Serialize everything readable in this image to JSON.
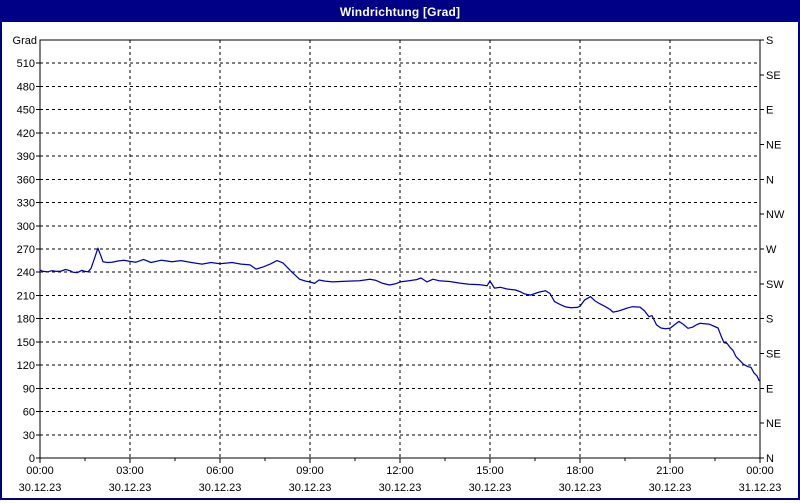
{
  "window": {
    "title": "Windrichtung [Grad]"
  },
  "colors": {
    "titlebar_bg": "#000087",
    "titlebar_text": "#ffffff",
    "window_border": "#000087",
    "chart_bg": "#ffffff",
    "axis": "#000000",
    "grid": "#000000",
    "line": "#0000bb"
  },
  "chart_data": {
    "type": "line",
    "title": "Windrichtung [Grad]",
    "ylabel": "Grad",
    "ylim": [
      0,
      540
    ],
    "grid": "dashed",
    "y_left_ticks": [
      510,
      480,
      450,
      420,
      390,
      360,
      330,
      300,
      270,
      240,
      210,
      180,
      150,
      120,
      90,
      60,
      30,
      0
    ],
    "y_right_ticks": [
      {
        "value": 540,
        "label": "S"
      },
      {
        "value": 495,
        "label": "SE"
      },
      {
        "value": 450,
        "label": "E"
      },
      {
        "value": 405,
        "label": "NE"
      },
      {
        "value": 360,
        "label": "N"
      },
      {
        "value": 315,
        "label": "NW"
      },
      {
        "value": 270,
        "label": "W"
      },
      {
        "value": 225,
        "label": "SW"
      },
      {
        "value": 180,
        "label": "S"
      },
      {
        "value": 135,
        "label": "SE"
      },
      {
        "value": 90,
        "label": "E"
      },
      {
        "value": 45,
        "label": "NE"
      },
      {
        "value": 0,
        "label": "N"
      }
    ],
    "xlim_hours": [
      0,
      24
    ],
    "x_ticks": [
      {
        "hour": 0,
        "time": "00:00",
        "date": "30.12.23"
      },
      {
        "hour": 3,
        "time": "03:00",
        "date": "30.12.23"
      },
      {
        "hour": 6,
        "time": "06:00",
        "date": "30.12.23"
      },
      {
        "hour": 9,
        "time": "09:00",
        "date": "30.12.23"
      },
      {
        "hour": 12,
        "time": "12:00",
        "date": "30.12.23"
      },
      {
        "hour": 15,
        "time": "15:00",
        "date": "30.12.23"
      },
      {
        "hour": 18,
        "time": "18:00",
        "date": "30.12.23"
      },
      {
        "hour": 21,
        "time": "21:00",
        "date": "30.12.23"
      },
      {
        "hour": 24,
        "time": "00:00",
        "date": "31.12.23"
      }
    ],
    "x_minor_ticks_hours": [
      1.5,
      4.5,
      7.5,
      10.5,
      13.5,
      16.5,
      19.5,
      22.5
    ],
    "series": [
      {
        "name": "Windrichtung",
        "color": "#0000bb",
        "points": [
          [
            0,
            243
          ],
          [
            0.1,
            241
          ],
          [
            0.25,
            240.5
          ],
          [
            0.4,
            242
          ],
          [
            0.55,
            241
          ],
          [
            0.7,
            241.5
          ],
          [
            0.85,
            243.5
          ],
          [
            1,
            242
          ],
          [
            1.1,
            240
          ],
          [
            1.25,
            239.5
          ],
          [
            1.4,
            242.5
          ],
          [
            1.5,
            241
          ],
          [
            1.6,
            240.5
          ],
          [
            1.7,
            245
          ],
          [
            1.8,
            256
          ],
          [
            1.93,
            271
          ],
          [
            2.02,
            262
          ],
          [
            2.1,
            253.5
          ],
          [
            2.25,
            252.5
          ],
          [
            2.4,
            253
          ],
          [
            2.6,
            254.5
          ],
          [
            2.8,
            255.5
          ],
          [
            3,
            254
          ],
          [
            3.2,
            253
          ],
          [
            3.45,
            256.5
          ],
          [
            3.7,
            252.5
          ],
          [
            4.05,
            255.5
          ],
          [
            4.4,
            253.5
          ],
          [
            4.7,
            255
          ],
          [
            5.05,
            252.5
          ],
          [
            5.4,
            250.5
          ],
          [
            5.7,
            252.5
          ],
          [
            6,
            251
          ],
          [
            6.4,
            252.5
          ],
          [
            6.7,
            250.5
          ],
          [
            7,
            249.5
          ],
          [
            7.2,
            244
          ],
          [
            7.45,
            247
          ],
          [
            7.7,
            251
          ],
          [
            7.9,
            255
          ],
          [
            8.1,
            252
          ],
          [
            8.4,
            240
          ],
          [
            8.65,
            231
          ],
          [
            8.85,
            228.5
          ],
          [
            9,
            227.5
          ],
          [
            9.15,
            225.5
          ],
          [
            9.3,
            230
          ],
          [
            9.5,
            228.5
          ],
          [
            9.75,
            227.5
          ],
          [
            10,
            228
          ],
          [
            10.3,
            228.5
          ],
          [
            10.65,
            229
          ],
          [
            11,
            231
          ],
          [
            11.2,
            229.5
          ],
          [
            11.4,
            226
          ],
          [
            11.65,
            223.5
          ],
          [
            11.85,
            225
          ],
          [
            12,
            227.5
          ],
          [
            12.3,
            229
          ],
          [
            12.55,
            230.5
          ],
          [
            12.7,
            232.5
          ],
          [
            12.9,
            227.5
          ],
          [
            13.1,
            231
          ],
          [
            13.3,
            229
          ],
          [
            13.65,
            228
          ],
          [
            14,
            226
          ],
          [
            14.3,
            224.5
          ],
          [
            14.65,
            224
          ],
          [
            14.9,
            222.5
          ],
          [
            15,
            228.5
          ],
          [
            15.15,
            219.5
          ],
          [
            15.35,
            220.5
          ],
          [
            15.55,
            218.5
          ],
          [
            15.85,
            217
          ],
          [
            16,
            215
          ],
          [
            16.15,
            212
          ],
          [
            16.35,
            210.5
          ],
          [
            16.5,
            212.5
          ],
          [
            16.65,
            214.5
          ],
          [
            16.85,
            216
          ],
          [
            17,
            212.5
          ],
          [
            17.15,
            202
          ],
          [
            17.35,
            198
          ],
          [
            17.5,
            195.5
          ],
          [
            17.7,
            194
          ],
          [
            17.9,
            194.5
          ],
          [
            18,
            196
          ],
          [
            18.15,
            204
          ],
          [
            18.35,
            208.5
          ],
          [
            18.5,
            203
          ],
          [
            18.65,
            199.5
          ],
          [
            18.85,
            195.5
          ],
          [
            19,
            192
          ],
          [
            19.1,
            188.5
          ],
          [
            19.25,
            189.5
          ],
          [
            19.45,
            192
          ],
          [
            19.6,
            194
          ],
          [
            19.75,
            195.5
          ],
          [
            20,
            195
          ],
          [
            20.15,
            190
          ],
          [
            20.3,
            182.5
          ],
          [
            20.4,
            184
          ],
          [
            20.55,
            172
          ],
          [
            20.7,
            168
          ],
          [
            20.85,
            167
          ],
          [
            21,
            167.5
          ],
          [
            21.15,
            172
          ],
          [
            21.3,
            176.5
          ],
          [
            21.45,
            172.5
          ],
          [
            21.6,
            167.5
          ],
          [
            21.75,
            169
          ],
          [
            21.9,
            172.5
          ],
          [
            22,
            174
          ],
          [
            22.15,
            173.5
          ],
          [
            22.3,
            173
          ],
          [
            22.45,
            170.5
          ],
          [
            22.6,
            168
          ],
          [
            22.7,
            158
          ],
          [
            22.8,
            149
          ],
          [
            22.9,
            148
          ],
          [
            23,
            143
          ],
          [
            23.1,
            139
          ],
          [
            23.2,
            131
          ],
          [
            23.3,
            127
          ],
          [
            23.45,
            121
          ],
          [
            23.6,
            118
          ],
          [
            23.7,
            117
          ],
          [
            23.8,
            110
          ],
          [
            23.9,
            106
          ],
          [
            23.97,
            100
          ]
        ]
      }
    ]
  }
}
